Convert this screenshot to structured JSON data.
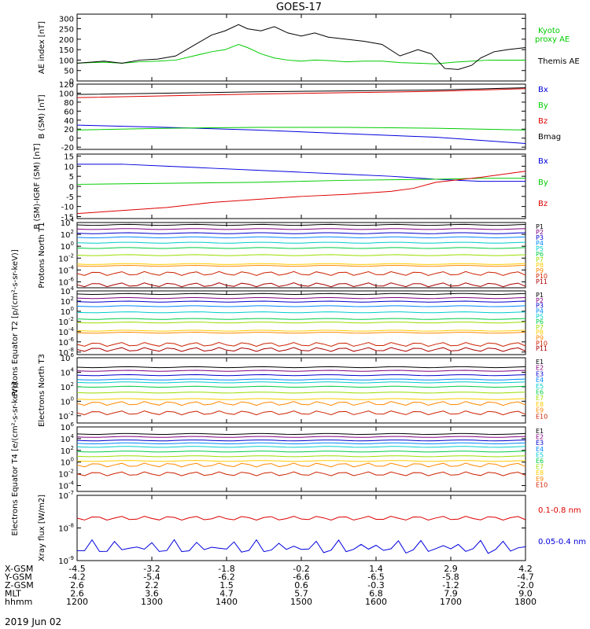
{
  "title": "GOES-17",
  "date_label": "2019 Jun 02",
  "colors": {
    "black": "#000000",
    "green": "#00cc00",
    "blue": "#0000dd",
    "red": "#dd0000",
    "xray_long": "#dd0000",
    "xray_short": "#0000dd"
  },
  "channel_colors": [
    "#000000",
    "#800080",
    "#0000cc",
    "#0088ff",
    "#00cccc",
    "#00cc44",
    "#99dd00",
    "#ffcc00",
    "#ff8800",
    "#cc2200",
    "#aa0000"
  ],
  "chart_data": [
    {
      "type": "line",
      "id": "ae",
      "ylabel": "AE index [nT]",
      "yticks": [
        "300",
        "250",
        "200",
        "150",
        "100",
        "50",
        "0"
      ],
      "ylim": [
        0,
        320
      ],
      "series": [
        {
          "name": "Kyoto proxy AE",
          "color": "green",
          "x": [
            0,
            0.03,
            0.06,
            0.1,
            0.14,
            0.18,
            0.22,
            0.26,
            0.3,
            0.33,
            0.36,
            0.38,
            0.41,
            0.44,
            0.47,
            0.5,
            0.53,
            0.56,
            0.6,
            0.64,
            0.68,
            0.72,
            0.76,
            0.8,
            0.84,
            0.88,
            0.92,
            0.96,
            1
          ],
          "values": [
            85,
            88,
            90,
            85,
            92,
            95,
            100,
            120,
            140,
            150,
            175,
            160,
            130,
            110,
            100,
            95,
            100,
            98,
            92,
            95,
            95,
            88,
            85,
            82,
            90,
            95,
            100,
            100,
            100
          ]
        },
        {
          "name": "Themis AE",
          "color": "black",
          "x": [
            0,
            0.03,
            0.06,
            0.1,
            0.14,
            0.18,
            0.22,
            0.26,
            0.3,
            0.33,
            0.36,
            0.38,
            0.41,
            0.44,
            0.47,
            0.5,
            0.53,
            0.56,
            0.6,
            0.64,
            0.68,
            0.72,
            0.76,
            0.79,
            0.82,
            0.85,
            0.88,
            0.9,
            0.93,
            0.96,
            1
          ],
          "values": [
            85,
            90,
            95,
            85,
            100,
            105,
            120,
            170,
            220,
            240,
            270,
            250,
            240,
            260,
            230,
            215,
            230,
            210,
            200,
            190,
            175,
            120,
            150,
            130,
            60,
            55,
            75,
            110,
            140,
            150,
            160
          ]
        }
      ]
    },
    {
      "type": "line",
      "id": "bsm",
      "ylabel": "B (SM) [nT]",
      "yticks": [
        "120",
        "100",
        "80",
        "60",
        "40",
        "20",
        "0",
        "-20"
      ],
      "ylim": [
        -25,
        120
      ],
      "series": [
        {
          "name": "Bx",
          "color": "blue",
          "x": [
            0,
            0.2,
            0.4,
            0.6,
            0.8,
            1
          ],
          "values": [
            29,
            24,
            18,
            10,
            2,
            -12
          ]
        },
        {
          "name": "By",
          "color": "green",
          "x": [
            0,
            0.2,
            0.4,
            0.6,
            0.8,
            1
          ],
          "values": [
            18,
            22,
            24,
            24,
            22,
            18
          ]
        },
        {
          "name": "Bz",
          "color": "red",
          "x": [
            0,
            0.2,
            0.4,
            0.6,
            0.8,
            1
          ],
          "values": [
            90,
            94,
            98,
            101,
            104,
            110
          ]
        },
        {
          "name": "Bmag",
          "color": "black",
          "x": [
            0,
            0.2,
            0.4,
            0.6,
            0.8,
            1
          ],
          "values": [
            97,
            100,
            103,
            105,
            107,
            112
          ]
        }
      ]
    },
    {
      "type": "line",
      "id": "bigrf",
      "ylabel": "B (SM)-IGRF (SM) [nT]",
      "yticks": [
        "15",
        "10",
        "5",
        "0",
        "-5",
        "-10",
        "-15"
      ],
      "ylim": [
        -16,
        16
      ],
      "series": [
        {
          "name": "Bx",
          "color": "blue",
          "x": [
            0,
            0.1,
            0.2,
            0.3,
            0.4,
            0.5,
            0.6,
            0.7,
            0.8,
            0.9,
            1
          ],
          "values": [
            11,
            11,
            10,
            9,
            8,
            7,
            6,
            5,
            3.5,
            2.5,
            2.5
          ]
        },
        {
          "name": "By",
          "color": "green",
          "x": [
            0,
            0.2,
            0.4,
            0.6,
            0.8,
            0.9,
            1
          ],
          "values": [
            1,
            1.5,
            2,
            3,
            3.5,
            4,
            4
          ]
        },
        {
          "name": "Bz",
          "color": "red",
          "x": [
            0,
            0.1,
            0.2,
            0.3,
            0.4,
            0.5,
            0.6,
            0.7,
            0.75,
            0.8,
            0.9,
            1
          ],
          "values": [
            -13.5,
            -12,
            -10.5,
            -8,
            -6.5,
            -5,
            -4,
            -2.5,
            -1,
            2,
            4.5,
            7.5
          ]
        }
      ]
    },
    {
      "type": "line",
      "id": "p_north",
      "log": true,
      "ylabel": "Protons North T1",
      "yticks": [
        "10^4",
        "10^2",
        "10^0",
        "10^-2",
        "10^-4",
        "10^-6"
      ],
      "ylim_exp": [
        -7,
        4
      ],
      "series": [
        {
          "name": "P1",
          "exp": 3.6
        },
        {
          "name": "P2",
          "exp": 2.9
        },
        {
          "name": "P3",
          "exp": 2.2
        },
        {
          "name": "P4",
          "exp": 1.5
        },
        {
          "name": "P5",
          "exp": 0.6
        },
        {
          "name": "P6",
          "exp": -0.3
        },
        {
          "name": "P7",
          "exp": -1.5
        },
        {
          "name": "P8",
          "exp": -3.0
        },
        {
          "name": "P9",
          "exp": -3.3
        },
        {
          "name": "P10",
          "exp": -4.6
        },
        {
          "name": "P11",
          "exp": -6.5
        }
      ]
    },
    {
      "type": "line",
      "id": "p_eq",
      "log": true,
      "ylabel": "Protons Equator T2 [p/(cm²-s-sr-keV)]",
      "yticks": [
        "10^4",
        "10^2",
        "10^0",
        "10^-2",
        "10^-4",
        "10^-6",
        "10^-8"
      ],
      "ylim_exp": [
        -8.5,
        4
      ],
      "series": [
        {
          "name": "P1",
          "exp": 3.4
        },
        {
          "name": "P2",
          "exp": 2.6
        },
        {
          "name": "P3",
          "exp": 1.9
        },
        {
          "name": "P4",
          "exp": 1.0
        },
        {
          "name": "P5",
          "exp": -0.2
        },
        {
          "name": "P6",
          "exp": -1.5
        },
        {
          "name": "P7",
          "exp": -2.2
        },
        {
          "name": "P8",
          "exp": -3.8
        },
        {
          "name": "P9",
          "exp": -4.2
        },
        {
          "name": "P10",
          "exp": -6.5
        },
        {
          "name": "P11",
          "exp": -7.5
        }
      ]
    },
    {
      "type": "line",
      "id": "e_north",
      "log": true,
      "ylabel": "Electrons North T3",
      "yticks": [
        "10^6",
        "10^4",
        "10^2",
        "10^0",
        "10^-2"
      ],
      "ylim_exp": [
        -3,
        6
      ],
      "series": [
        {
          "name": "E1",
          "exp": 4.7
        },
        {
          "name": "E2",
          "exp": 4.2
        },
        {
          "name": "E3",
          "exp": 3.6
        },
        {
          "name": "E4",
          "exp": 3.0
        },
        {
          "name": "E5",
          "exp": 2.6
        },
        {
          "name": "E6",
          "exp": 2.0
        },
        {
          "name": "E7",
          "exp": 1.2
        },
        {
          "name": "E8",
          "exp": 0.3
        },
        {
          "name": "E9",
          "exp": -0.3
        },
        {
          "name": "E10",
          "exp": -1.6
        }
      ]
    },
    {
      "type": "line",
      "id": "e_eq",
      "log": true,
      "ylabel": "Electrons Equator T4 [e/(cm²-s-sr-keV)]",
      "yticks": [
        "10^6",
        "10^4",
        "10^2",
        "10^0",
        "10^-2",
        "10^-4"
      ],
      "ylim_exp": [
        -5,
        6
      ],
      "series": [
        {
          "name": "E1",
          "exp": 4.8
        },
        {
          "name": "E2",
          "exp": 4.3
        },
        {
          "name": "E3",
          "exp": 3.7
        },
        {
          "name": "E4",
          "exp": 3.2
        },
        {
          "name": "E5",
          "exp": 2.6
        },
        {
          "name": "E6",
          "exp": 1.8
        },
        {
          "name": "E7",
          "exp": 1.0
        },
        {
          "name": "E8",
          "exp": 0.2
        },
        {
          "name": "E9",
          "exp": -0.5
        },
        {
          "name": "E10",
          "exp": -2.0
        }
      ]
    },
    {
      "type": "line",
      "id": "xray",
      "log": true,
      "ylabel": "Xray flux [W/m2]",
      "yticks": [
        "10^-7",
        "10^-8",
        "10^-9"
      ],
      "ylim_exp": [
        -9,
        -7
      ],
      "series": [
        {
          "name": "0.1-0.8 nm",
          "color": "xray_long",
          "exp": -7.7
        },
        {
          "name": "0.05-0.4 nm",
          "color": "xray_short",
          "exp": -8.6
        }
      ]
    }
  ],
  "panel_side_labels": {
    "ae": [
      "Kyoto",
      "proxy AE",
      "Themis AE"
    ],
    "bsm": [
      "Bx",
      "By",
      "Bz",
      "Bmag"
    ],
    "bigrf": [
      "Bx",
      "By",
      "Bz"
    ],
    "xray": [
      "0.1-0.8 nm",
      "0.05-0.4 nm"
    ]
  },
  "x_axis": {
    "row_labels": [
      "X-GSM",
      "Y-GSM",
      "Z-GSM",
      "MLT",
      "hhmm"
    ],
    "columns": [
      {
        "hhmm": "1200",
        "x": "-4.5",
        "y": "-4.2",
        "z": "2.6",
        "mlt": "2.6"
      },
      {
        "hhmm": "1300",
        "x": "-3.2",
        "y": "-5.4",
        "z": "2.2",
        "mlt": "3.6"
      },
      {
        "hhmm": "1400",
        "x": "-1.8",
        "y": "-6.2",
        "z": "1.5",
        "mlt": "4.7"
      },
      {
        "hhmm": "1500",
        "x": "-0.2",
        "y": "-6.6",
        "z": "0.6",
        "mlt": "5.7"
      },
      {
        "hhmm": "1600",
        "x": "1.4",
        "y": "-6.5",
        "z": "-0.3",
        "mlt": "6.8"
      },
      {
        "hhmm": "1700",
        "x": "2.9",
        "y": "-5.8",
        "z": "-1.2",
        "mlt": "7.9"
      },
      {
        "hhmm": "1800",
        "x": "4.2",
        "y": "-4.7",
        "z": "-2.0",
        "mlt": "9.0"
      }
    ]
  }
}
